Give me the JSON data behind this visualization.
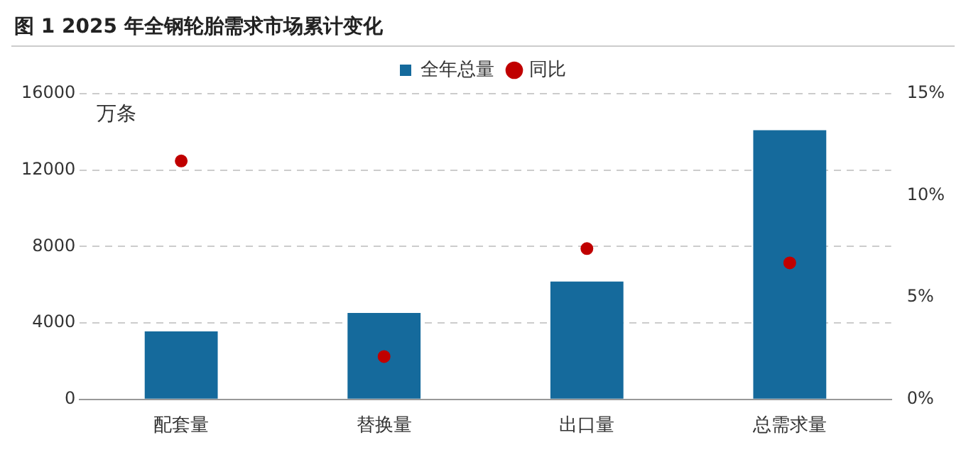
{
  "chart_data": {
    "type": "bar",
    "title": "图 1 2025 年全钢轮胎需求市场累计变化",
    "ylabel": "万条",
    "categories": [
      "配套量",
      "替换量",
      "出口量",
      "总需求量"
    ],
    "series": [
      {
        "name": "全年总量",
        "color": "#156a9c",
        "values": [
          3560,
          4520,
          6170,
          14090
        ]
      },
      {
        "name": "同比",
        "type": "scatter",
        "axis": "y2",
        "color": "#c00000",
        "marker": "circle",
        "values": [
          11.7,
          2.1,
          7.4,
          6.7
        ]
      }
    ],
    "ylim": [
      0,
      16000
    ],
    "yticks": [
      0,
      4000,
      8000,
      12000,
      16000
    ],
    "y2lim": [
      0,
      15
    ],
    "y2ticks": [
      {
        "value": 0,
        "label": "0%"
      },
      {
        "value": 5,
        "label": "5%"
      },
      {
        "value": 10,
        "label": "10%"
      },
      {
        "value": 15,
        "label": "15%"
      }
    ],
    "grid": "y",
    "legend": "top"
  }
}
